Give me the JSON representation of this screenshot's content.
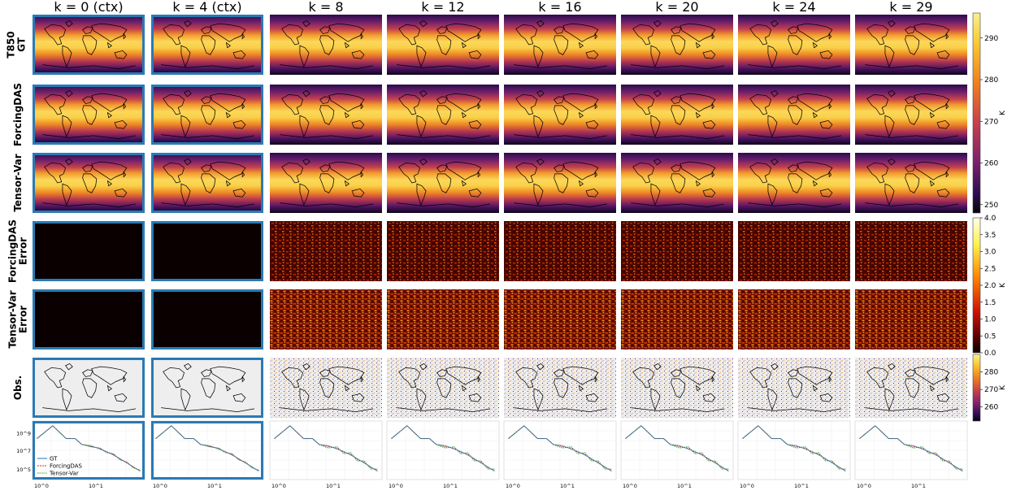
{
  "columns": [
    "k = 0 (ctx)",
    "k = 4 (ctx)",
    "k = 8",
    "k = 12",
    "k = 16",
    "k = 20",
    "k = 24",
    "k = 29"
  ],
  "context_columns": [
    0,
    1
  ],
  "rows": [
    {
      "label_lines": [
        "T850",
        "GT"
      ],
      "kind": "field"
    },
    {
      "label_lines": [
        "ForcingDAS"
      ],
      "kind": "field"
    },
    {
      "label_lines": [
        "Tensor-Var"
      ],
      "kind": "field"
    },
    {
      "label_lines": [
        "ForcingDAS",
        "Error"
      ],
      "kind": "error"
    },
    {
      "label_lines": [
        "Tensor-Var",
        "Error"
      ],
      "kind": "error"
    },
    {
      "label_lines": [
        "Obs."
      ],
      "kind": "obs"
    },
    {
      "label_lines": [],
      "kind": "spectrum"
    }
  ],
  "colorbars": [
    {
      "name": "temperature",
      "unit": "K",
      "ticks": [
        "290",
        "280",
        "270",
        "260",
        "250"
      ],
      "range": [
        248,
        296
      ],
      "colormap": "inferno"
    },
    {
      "name": "error",
      "unit": "K",
      "ticks": [
        "4.0",
        "3.5",
        "3.0",
        "2.5",
        "2.0",
        "1.5",
        "1.0",
        "0.5",
        "0.0"
      ],
      "range": [
        0,
        4
      ],
      "colormap": "hot"
    },
    {
      "name": "observations",
      "unit": "K",
      "ticks": [
        "280",
        "270",
        "260"
      ],
      "range": [
        252,
        290
      ],
      "colormap": "inferno"
    }
  ],
  "spectrum": {
    "legend": [
      "GT",
      "ForcingDAS",
      "Tensor-Var"
    ],
    "colors": {
      "GT": "#1f77b4",
      "ForcingDAS": "#d62728",
      "Tensor-Var": "#2ca02c"
    },
    "ytick_labels": [
      "10^9",
      "10^7",
      "10^5"
    ],
    "xtick_labels": [
      "10^0",
      "10^1"
    ],
    "xscale": "log",
    "yscale": "log"
  },
  "colors": {
    "context_border": "#2a7ab5"
  }
}
